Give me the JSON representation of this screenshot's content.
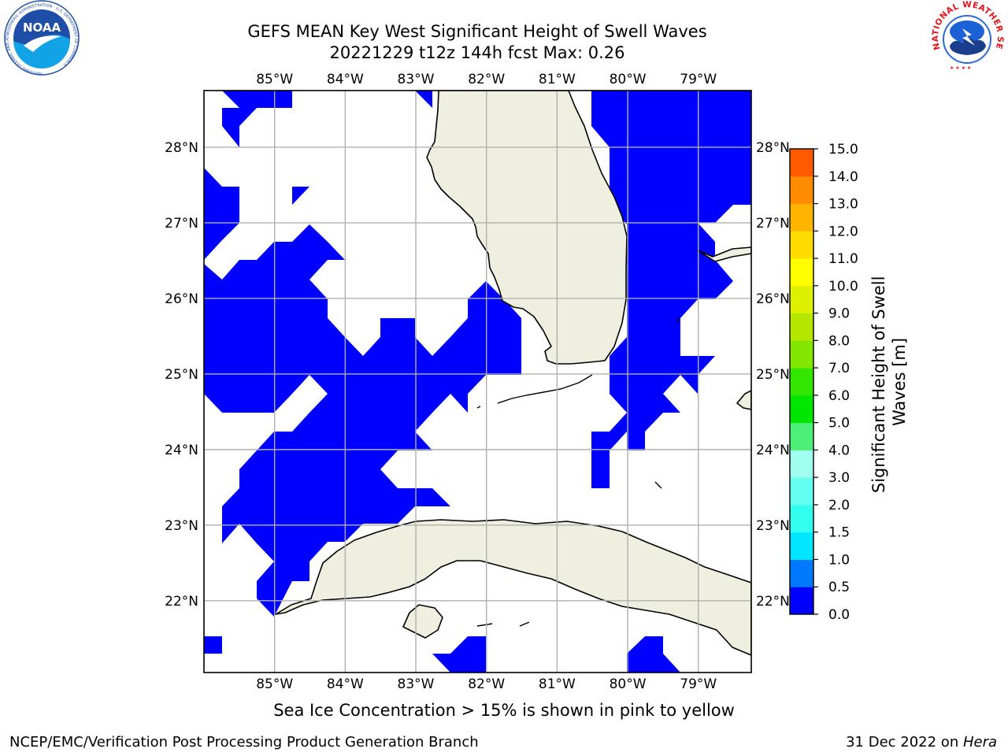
{
  "title": {
    "line1": "GEFS MEAN Key West Significant Height of Swell Waves",
    "line2": "20221229 t12z 144h fcst   Max: 0.26"
  },
  "logos": {
    "noaa": {
      "text": "NOAA",
      "ring_text": "NATIONAL OCEANIC AND ATMOSPHERIC ADMINISTRATION · U.S. DEPARTMENT OF COMMERCE",
      "color": "#1e4ea8"
    },
    "nws": {
      "ring_text": "NATIONAL WEATHER SERVICE",
      "color": "#e8141c"
    }
  },
  "map": {
    "lon_labels": [
      "85°W",
      "84°W",
      "83°W",
      "82°W",
      "81°W",
      "80°W",
      "79°W"
    ],
    "lon_values": [
      -85,
      -84,
      -83,
      -82,
      -81,
      -80,
      -79
    ],
    "lat_labels": [
      "28°N",
      "27°N",
      "26°N",
      "25°N",
      "24°N",
      "23°N",
      "22°N"
    ],
    "lat_values": [
      28,
      27,
      26,
      25,
      24,
      23,
      22
    ],
    "lon_range": [
      -86.0,
      -78.25
    ],
    "lat_range": [
      21.05,
      28.75
    ],
    "colors": {
      "land": "#efefdf",
      "ocean": "#ffffff",
      "swell_fill": "#0000ff",
      "grid": "#b0b0b0",
      "coast": "#000000"
    }
  },
  "colorbar": {
    "label": "Significant Height of Swell Waves [m]",
    "label_lines": [
      "Significant Height of Swell",
      "Waves [m]"
    ],
    "tick_labels": [
      "0.0",
      "0.5",
      "1.0",
      "1.5",
      "2.0",
      "3.0",
      "4.0",
      "5.0",
      "6.0",
      "7.0",
      "8.0",
      "9.0",
      "10.0",
      "11.0",
      "12.0",
      "13.0",
      "14.0",
      "15.0"
    ],
    "colors": [
      "#0000ff",
      "#0078ff",
      "#00e6ff",
      "#32ffee",
      "#64ffee",
      "#a0ffee",
      "#4cf078",
      "#00e600",
      "#32e600",
      "#82e600",
      "#b4e600",
      "#dcf000",
      "#ffff00",
      "#ffdc00",
      "#ffb400",
      "#ff8c00",
      "#ff5a00",
      "#ff2800",
      "#ff0000"
    ]
  },
  "caption": "Sea Ice Concentration > 15% is shown in pink to yellow",
  "credits": {
    "left": "NCEP/EMC/Verification Post Processing Product Generation Branch",
    "right_prefix": "31 Dec 2022 on ",
    "right_host": "Hera"
  }
}
